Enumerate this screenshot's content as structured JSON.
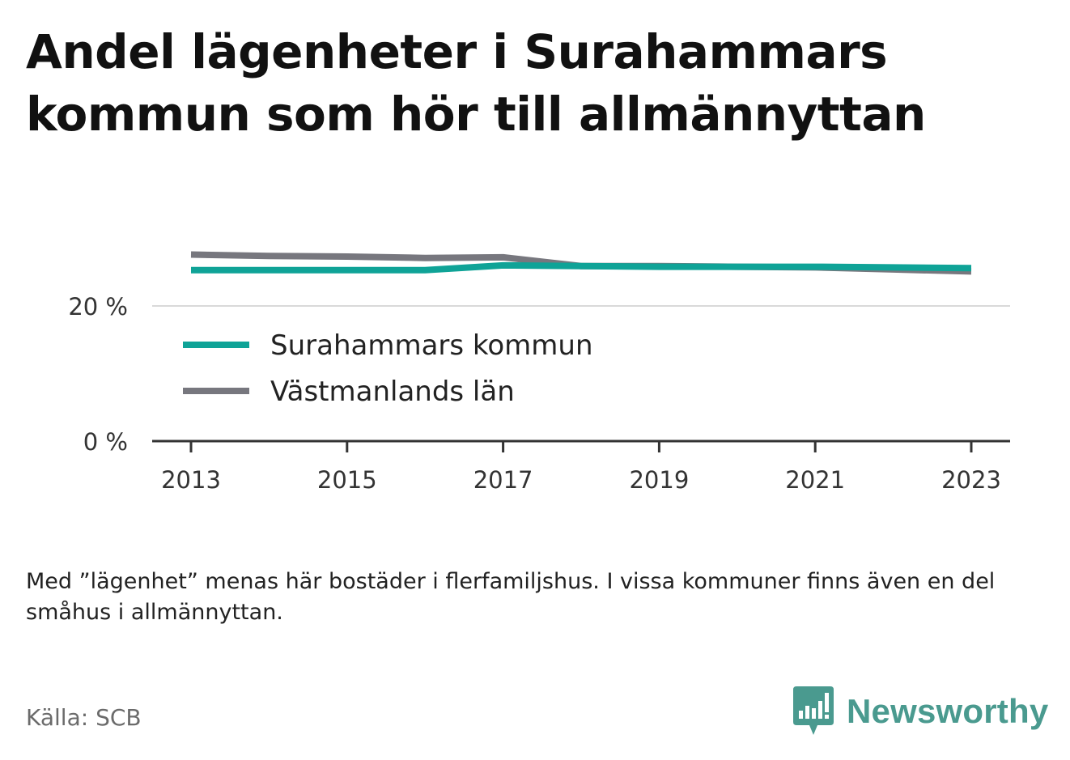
{
  "title": "Andel lägenheter i Surahammars kommun som hör till allmännyttan",
  "note": "Med ”lägenhet” menas här bostäder i flerfamiljshus. I vissa kommuner finns även en del småhus i allmännyttan.",
  "source": "Källa: SCB",
  "brand": {
    "name": "Newsworthy",
    "icon": "chart-bubble-icon"
  },
  "colors": {
    "surahammar": "#0fa397",
    "vastmanland": "#77777e",
    "axis": "#333333",
    "grid": "#d9d9d9"
  },
  "chart_data": {
    "type": "line",
    "title": "Andel lägenheter i Surahammars kommun som hör till allmännyttan",
    "xlabel": "",
    "ylabel": "",
    "x": [
      2013,
      2014,
      2015,
      2016,
      2017,
      2018,
      2019,
      2020,
      2021,
      2022,
      2023
    ],
    "x_ticks": [
      "2013",
      "2015",
      "2017",
      "2019",
      "2021",
      "2023"
    ],
    "y_ticks": [
      "0 %",
      "20 %"
    ],
    "y_tick_values": [
      0,
      20
    ],
    "ylim": [
      0,
      28
    ],
    "grid": true,
    "legend_position": "inside-bottom-left",
    "series": [
      {
        "name": "Surahammars kommun",
        "color": "#0fa397",
        "values": [
          25.3,
          25.3,
          25.3,
          25.3,
          26.0,
          25.9,
          25.8,
          25.8,
          25.8,
          25.7,
          25.6
        ]
      },
      {
        "name": "Västmanlands län",
        "color": "#77777e",
        "values": [
          27.6,
          27.4,
          27.3,
          27.1,
          27.2,
          25.9,
          25.9,
          25.8,
          25.7,
          25.4,
          25.1
        ]
      }
    ]
  }
}
